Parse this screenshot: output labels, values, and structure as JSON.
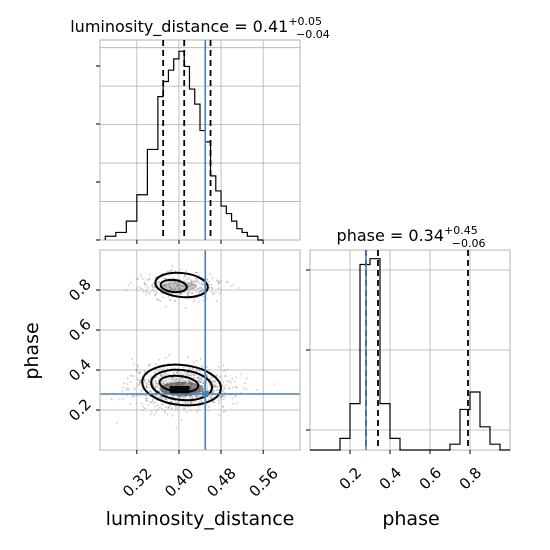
{
  "chart_data": {
    "type": "corner",
    "parameters": [
      "luminosity_distance",
      "phase"
    ],
    "titles": {
      "luminosity_distance": {
        "name": "luminosity_distance",
        "median": "0.41",
        "plus": "+0.05",
        "minus": "−0.04"
      },
      "phase": {
        "name": "phase",
        "median": "0.34",
        "plus": "+0.45",
        "minus": "−0.06"
      }
    },
    "ranges": {
      "luminosity_distance": [
        0.25,
        0.63
      ],
      "phase": [
        0.0,
        1.0
      ]
    },
    "ticks": {
      "luminosity_distance": [
        0.32,
        0.4,
        0.48,
        0.56
      ],
      "phase": [
        0.2,
        0.4,
        0.6,
        0.8
      ]
    },
    "tick_labels": {
      "luminosity_distance": [
        "0.32",
        "0.40",
        "0.48",
        "0.56"
      ],
      "phase": [
        "0.2",
        "0.4",
        "0.6",
        "0.8"
      ]
    },
    "axis_labels": {
      "x_lower_left": "luminosity_distance",
      "x_lower_right": "phase",
      "y_lower_left": "phase"
    },
    "truths": {
      "luminosity_distance": 0.45,
      "phase": 0.28
    },
    "quantiles": {
      "luminosity_distance": [
        0.37,
        0.41,
        0.46
      ],
      "phase": [
        0.28,
        0.34,
        0.79
      ]
    },
    "hist_luminosity_distance": {
      "bin_edges": [
        0.26,
        0.28,
        0.3,
        0.32,
        0.34,
        0.36,
        0.37,
        0.38,
        0.39,
        0.4,
        0.41,
        0.42,
        0.43,
        0.44,
        0.45,
        0.46,
        0.47,
        0.48,
        0.49,
        0.5,
        0.51,
        0.52,
        0.53,
        0.54,
        0.55,
        0.56
      ],
      "counts": [
        1,
        2,
        5,
        12,
        24,
        38,
        42,
        45,
        48,
        50,
        46,
        40,
        36,
        29,
        26,
        17,
        13,
        9,
        7,
        5,
        3,
        2,
        1,
        1,
        0
      ]
    },
    "hist_phase": {
      "bin_edges": [
        0.0,
        0.05,
        0.1,
        0.15,
        0.2,
        0.25,
        0.3,
        0.35,
        0.4,
        0.45,
        0.5,
        0.55,
        0.6,
        0.65,
        0.7,
        0.75,
        0.8,
        0.85,
        0.9,
        0.95,
        1.0
      ],
      "counts": [
        0,
        0,
        0,
        2,
        8,
        32,
        33,
        8,
        2,
        0,
        0,
        0,
        0,
        0,
        1,
        7,
        10,
        4,
        1,
        0
      ]
    },
    "density_2d": {
      "clusters": [
        {
          "center": [
            0.405,
            0.31
          ],
          "spread": [
            0.035,
            0.05
          ],
          "weight": 0.78
        },
        {
          "center": [
            0.4,
            0.82
          ],
          "spread": [
            0.03,
            0.035
          ],
          "weight": 0.22
        }
      ],
      "contours": [
        {
          "center": [
            0.405,
            0.325
          ],
          "half_width": [
            0.075,
            0.1
          ]
        },
        {
          "center": [
            0.405,
            0.325
          ],
          "half_width": [
            0.058,
            0.075
          ]
        },
        {
          "center": [
            0.4,
            0.33
          ],
          "half_width": [
            0.037,
            0.04
          ]
        },
        {
          "center": [
            0.405,
            0.825
          ],
          "half_width": [
            0.05,
            0.06
          ]
        },
        {
          "center": [
            0.39,
            0.82
          ],
          "half_width": [
            0.025,
            0.03
          ]
        }
      ]
    },
    "grid": true,
    "colors": {
      "truth": "#4682b4",
      "hist": "#000000",
      "points": "#8c8c8c",
      "grid": "#b0b0b0"
    }
  }
}
